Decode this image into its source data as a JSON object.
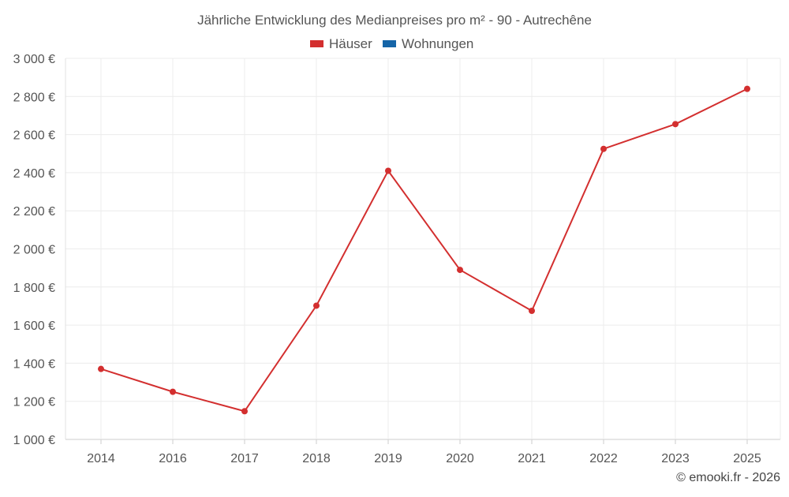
{
  "chart_data": {
    "type": "line",
    "title": "Jährliche Entwicklung des Medianpreises pro m² - 90 - Autrechêne",
    "legend": {
      "placement": "top-center",
      "entries": [
        {
          "label": "Häuser",
          "color": "#d32f2f"
        },
        {
          "label": "Wohnungen",
          "color": "#1565a8"
        }
      ]
    },
    "categories": [
      "2014",
      "2016",
      "2017",
      "2018",
      "2019",
      "2020",
      "2021",
      "2022",
      "2023",
      "2025"
    ],
    "series": [
      {
        "name": "Häuser",
        "color": "#d32f2f",
        "values": [
          1370,
          1250,
          1148,
          1702,
          2410,
          1890,
          1675,
          2525,
          2655,
          2840
        ]
      }
    ],
    "ylim": [
      1000,
      3000
    ],
    "yticks": [
      1000,
      1200,
      1400,
      1600,
      1800,
      2000,
      2200,
      2400,
      2600,
      2800,
      3000
    ],
    "ytick_labels": [
      "1 000 €",
      "1 200 €",
      "1 400 €",
      "1 600 €",
      "1 800 €",
      "2 000 €",
      "2 200 €",
      "2 400 €",
      "2 600 €",
      "2 800 €",
      "3 000 €"
    ],
    "grid": true,
    "xlabel": "",
    "ylabel": ""
  },
  "credit": "© emooki.fr - 2026"
}
